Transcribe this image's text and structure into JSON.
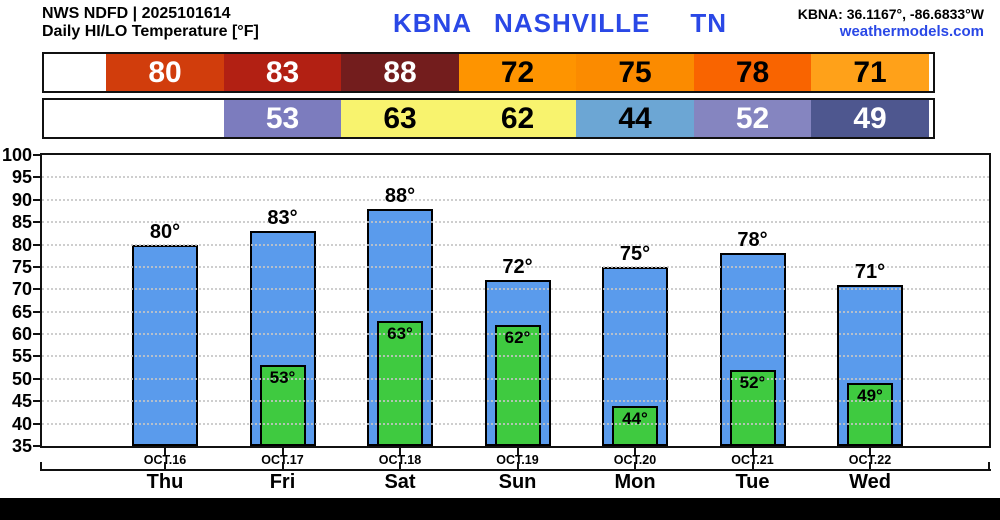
{
  "header": {
    "source_line": "NWS NDFD | 2025101614",
    "product_line": "Daily HI/LO Temperature [°F]",
    "title": {
      "station": "KBNA",
      "city": "NASHVILLE",
      "state": "TN"
    },
    "coords": "KBNA: 36.1167°, -86.6833°W",
    "website": "weathermodels.com"
  },
  "colors": {
    "title_blue": "#2A48E6",
    "website_blue": "#2A48E6",
    "hi_bar": "#5A9BEC",
    "lo_bar": "#3FCA40",
    "bar_border": "#000000",
    "grid_dot": "#C5C5C5",
    "axis": "#111111",
    "footer": "#000000"
  },
  "chart_data": {
    "type": "bar",
    "title": "Daily HI/LO Temperature [°F]",
    "station": "KBNA NASHVILLE TN",
    "ylim": [
      35,
      100
    ],
    "ytick_step": 5,
    "grid": true,
    "legend_position": "none",
    "value_suffix": "°",
    "categories": [
      "OCT.16",
      "OCT.17",
      "OCT.18",
      "OCT.19",
      "OCT.20",
      "OCT.21",
      "OCT.22"
    ],
    "weekdays": [
      "Thu",
      "Fri",
      "Sat",
      "Sun",
      "Mon",
      "Tue",
      "Wed"
    ],
    "series": [
      {
        "name": "HI",
        "values": [
          80,
          83,
          88,
          72,
          75,
          78,
          71
        ],
        "bar_color": "#5A9BEC",
        "cell_colors": [
          "#D13D0C",
          "#B22013",
          "#731D1D",
          "#FE9400",
          "#FB8B00",
          "#F96400",
          "#FFA119"
        ],
        "cell_text_colors": [
          "#FFFFFF",
          "#FFFFFF",
          "#FFFFFF",
          "#000000",
          "#000000",
          "#000000",
          "#000000"
        ]
      },
      {
        "name": "LO",
        "values": [
          null,
          53,
          63,
          62,
          44,
          52,
          49
        ],
        "bar_color": "#3FCA40",
        "cell_colors": [
          null,
          "#7C7CBE",
          "#F8F36E",
          "#F8F36E",
          "#6CA6D4",
          "#8585C0",
          "#4E578F"
        ],
        "cell_text_colors": [
          null,
          "#FFFFFF",
          "#000000",
          "#000000",
          "#000000",
          "#FFFFFF",
          "#FFFFFF"
        ]
      }
    ]
  }
}
